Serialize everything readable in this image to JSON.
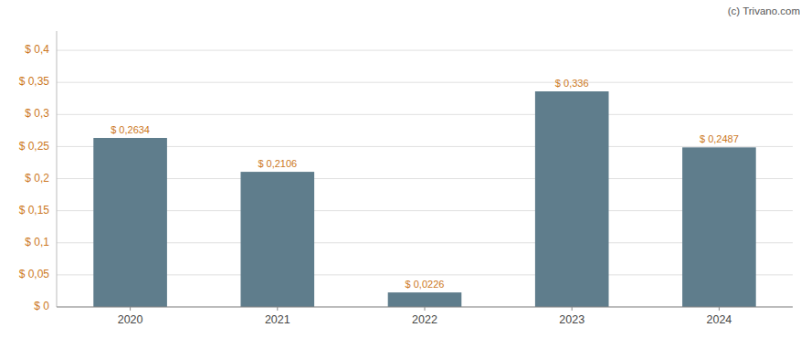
{
  "chart_data": {
    "type": "bar",
    "categories": [
      "2020",
      "2021",
      "2022",
      "2023",
      "2024"
    ],
    "values": [
      0.2634,
      0.2106,
      0.0226,
      0.336,
      0.2487
    ],
    "value_labels": [
      "$ 0,2634",
      "$ 0,2106",
      "$ 0,0226",
      "$ 0,336",
      "$ 0,2487"
    ],
    "color": "#5f7d8c",
    "ylim": [
      0,
      0.43
    ],
    "yticks": [
      {
        "value": 0,
        "label": "$ 0"
      },
      {
        "value": 0.05,
        "label": "$ 0,05"
      },
      {
        "value": 0.1,
        "label": "$ 0,1"
      },
      {
        "value": 0.15,
        "label": "$ 0,15"
      },
      {
        "value": 0.2,
        "label": "$ 0,2"
      },
      {
        "value": 0.25,
        "label": "$ 0,25"
      },
      {
        "value": 0.3,
        "label": "$ 0,3"
      },
      {
        "value": 0.35,
        "label": "$ 0,35"
      },
      {
        "value": 0.4,
        "label": "$ 0,4"
      }
    ],
    "grid": true,
    "data_labels": true,
    "annotations": [
      "(c) Trivano.com"
    ]
  }
}
